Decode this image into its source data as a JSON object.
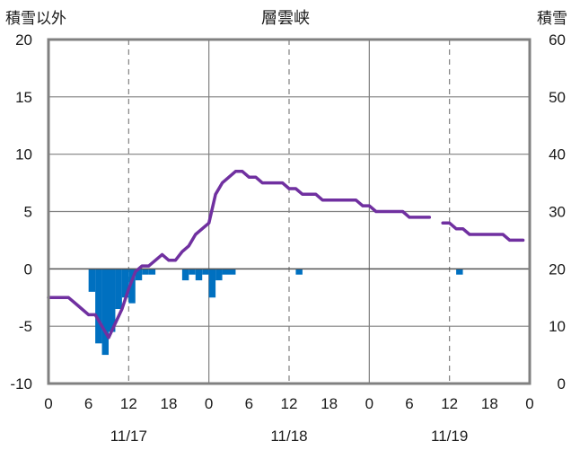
{
  "chart_data": {
    "type": "bar+line",
    "title": "層雲峡",
    "left_axis": {
      "label": "積雪以外",
      "ylim": [
        -10,
        20
      ],
      "ticks": [
        -10,
        -5,
        0,
        5,
        10,
        15,
        20
      ]
    },
    "right_axis": {
      "label": "積雪",
      "ylim": [
        0,
        60
      ],
      "ticks": [
        0,
        10,
        20,
        30,
        40,
        50,
        60
      ]
    },
    "x_axis": {
      "range_hours": [
        0,
        72
      ],
      "tick_hours": [
        0,
        6,
        12,
        18,
        24,
        30,
        36,
        42,
        48,
        54,
        60,
        66,
        72
      ],
      "tick_labels": [
        "0",
        "6",
        "12",
        "18",
        "0",
        "6",
        "12",
        "18",
        "0",
        "6",
        "12",
        "18",
        "0"
      ],
      "date_labels": [
        {
          "hour": 12,
          "label": "11/17"
        },
        {
          "hour": 36,
          "label": "11/18"
        },
        {
          "hour": 60,
          "label": "11/19"
        }
      ],
      "day_boundaries": [
        24,
        48
      ],
      "noon_lines": [
        12,
        36,
        60
      ]
    },
    "grid": true,
    "colors": {
      "bars": "#0070c0",
      "line": "#7030a0",
      "frame": "#808080",
      "grid": "#808080"
    },
    "bar_series": {
      "axis": "left",
      "points": [
        {
          "hour": 7,
          "value": -2.0
        },
        {
          "hour": 8,
          "value": -6.5
        },
        {
          "hour": 9,
          "value": -7.5
        },
        {
          "hour": 10,
          "value": -5.5
        },
        {
          "hour": 11,
          "value": -3.5
        },
        {
          "hour": 12,
          "value": -2.5
        },
        {
          "hour": 13,
          "value": -3.0
        },
        {
          "hour": 14,
          "value": -1.0
        },
        {
          "hour": 15,
          "value": -0.5
        },
        {
          "hour": 16,
          "value": -0.5
        },
        {
          "hour": 21,
          "value": -1.0
        },
        {
          "hour": 22,
          "value": -0.5
        },
        {
          "hour": 23,
          "value": -1.0
        },
        {
          "hour": 24,
          "value": -0.5
        },
        {
          "hour": 25,
          "value": -2.5
        },
        {
          "hour": 26,
          "value": -1.0
        },
        {
          "hour": 27,
          "value": -0.5
        },
        {
          "hour": 28,
          "value": -0.5
        },
        {
          "hour": 38,
          "value": -0.5
        },
        {
          "hour": 62,
          "value": -0.5
        }
      ]
    },
    "line_series": {
      "axis": "right",
      "segments": [
        [
          [
            0,
            15
          ],
          [
            1,
            15
          ],
          [
            2,
            15
          ],
          [
            3,
            15
          ],
          [
            4,
            14
          ],
          [
            5,
            13
          ],
          [
            6,
            12
          ],
          [
            7,
            12
          ],
          [
            8,
            10
          ],
          [
            9,
            8
          ],
          [
            10,
            10.5
          ],
          [
            11,
            13
          ],
          [
            12,
            16.5
          ],
          [
            13,
            19.5
          ],
          [
            14,
            20.5
          ],
          [
            15,
            20.5
          ],
          [
            16,
            21.5
          ],
          [
            17,
            22.5
          ],
          [
            18,
            21.5
          ],
          [
            19,
            21.5
          ],
          [
            20,
            23
          ],
          [
            21,
            24
          ],
          [
            22,
            26
          ],
          [
            23,
            27
          ],
          [
            24,
            28
          ],
          [
            25,
            33
          ],
          [
            26,
            35
          ],
          [
            27,
            36
          ],
          [
            28,
            37
          ],
          [
            29,
            37
          ],
          [
            30,
            36
          ],
          [
            31,
            36
          ],
          [
            32,
            35
          ],
          [
            33,
            35
          ],
          [
            34,
            35
          ],
          [
            35,
            35
          ],
          [
            36,
            34
          ],
          [
            37,
            34
          ],
          [
            38,
            33
          ],
          [
            39,
            33
          ],
          [
            40,
            33
          ],
          [
            41,
            32
          ],
          [
            42,
            32
          ],
          [
            43,
            32
          ],
          [
            44,
            32
          ],
          [
            45,
            32
          ],
          [
            46,
            32
          ],
          [
            47,
            31
          ],
          [
            48,
            31
          ],
          [
            49,
            30
          ],
          [
            50,
            30
          ],
          [
            51,
            30
          ],
          [
            52,
            30
          ],
          [
            53,
            30
          ],
          [
            54,
            29
          ],
          [
            55,
            29
          ],
          [
            56,
            29
          ],
          [
            57,
            29
          ]
        ],
        [
          [
            59,
            28
          ],
          [
            60,
            28
          ],
          [
            61,
            27
          ],
          [
            62,
            27
          ],
          [
            63,
            26
          ],
          [
            64,
            26
          ],
          [
            65,
            26
          ],
          [
            66,
            26
          ],
          [
            67,
            26
          ],
          [
            68,
            26
          ],
          [
            69,
            25
          ],
          [
            70,
            25
          ],
          [
            71,
            25
          ]
        ]
      ]
    }
  }
}
